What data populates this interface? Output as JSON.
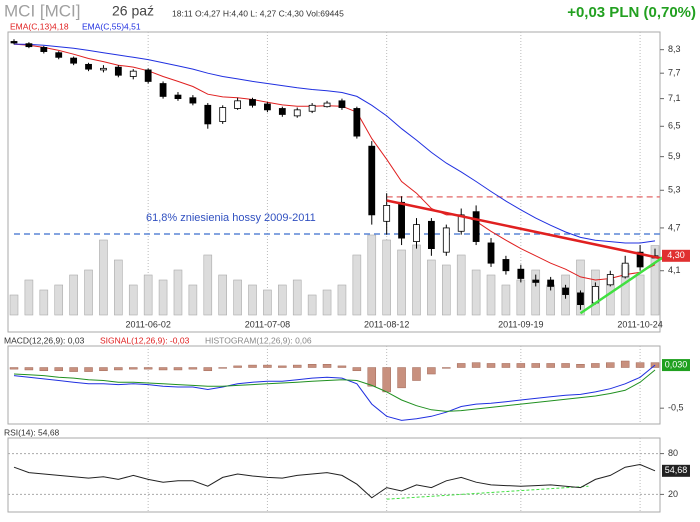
{
  "header": {
    "symbol": "MCI [MCI]",
    "date": "26 paź",
    "quote": "18:11 O:4,27 H:4,40 L: 4,27 C:4,30 Vol:69445",
    "change": "+0,03 PLN (0,70%)"
  },
  "chart_data": [
    {
      "type": "candlestick",
      "log_scale": true,
      "categories": [
        null,
        null,
        null,
        null,
        null,
        null,
        null,
        null,
        null,
        "2011-06-02",
        null,
        null,
        null,
        null,
        null,
        null,
        null,
        "2011-07-08",
        null,
        null,
        null,
        null,
        null,
        null,
        null,
        "2011-08-12",
        null,
        null,
        null,
        null,
        null,
        null,
        null,
        null,
        "2011-09-19",
        null,
        null,
        null,
        null,
        null,
        null,
        null,
        "2011-10-24",
        null
      ],
      "open": [
        8.52,
        8.46,
        8.36,
        8.22,
        8.08,
        7.92,
        7.78,
        7.85,
        7.62,
        7.78,
        7.45,
        7.18,
        7.12,
        6.95,
        6.6,
        6.88,
        7.08,
        6.98,
        6.88,
        6.72,
        6.82,
        6.92,
        7.05,
        6.88,
        6.1,
        4.8,
        5.1,
        4.5,
        4.8,
        4.35,
        4.65,
        4.95,
        4.48,
        4.25,
        4.12,
        3.98,
        3.98,
        3.88,
        3.82,
        3.7,
        3.92,
        4.02,
        4.35,
        4.27
      ],
      "high": [
        8.58,
        8.5,
        8.4,
        8.26,
        8.12,
        7.96,
        7.9,
        7.9,
        7.8,
        7.82,
        7.5,
        7.25,
        7.18,
        7.0,
        6.95,
        7.12,
        7.12,
        7.02,
        6.92,
        6.9,
        7.0,
        7.05,
        7.1,
        6.92,
        6.2,
        5.25,
        5.2,
        4.85,
        4.85,
        4.75,
        5.0,
        5.05,
        4.55,
        4.3,
        4.18,
        4.05,
        4.02,
        3.92,
        3.85,
        3.95,
        4.1,
        4.3,
        4.45,
        4.4
      ],
      "low": [
        8.44,
        8.34,
        8.2,
        8.05,
        7.9,
        7.75,
        7.72,
        7.6,
        7.55,
        7.45,
        7.1,
        7.05,
        6.95,
        6.45,
        6.55,
        6.85,
        6.9,
        6.8,
        6.7,
        6.68,
        6.78,
        6.9,
        6.85,
        6.25,
        4.75,
        4.6,
        4.45,
        4.4,
        4.3,
        4.3,
        4.6,
        4.45,
        4.15,
        4.05,
        3.95,
        3.9,
        3.85,
        3.75,
        3.62,
        3.68,
        3.9,
        4.0,
        4.1,
        4.27
      ],
      "close": [
        8.48,
        8.38,
        8.25,
        8.1,
        7.95,
        7.8,
        7.82,
        7.65,
        7.75,
        7.5,
        7.15,
        7.1,
        7.0,
        6.55,
        6.9,
        7.05,
        6.95,
        6.85,
        6.75,
        6.85,
        6.95,
        7.0,
        6.9,
        6.3,
        4.9,
        5.05,
        4.55,
        4.75,
        4.4,
        4.7,
        4.9,
        4.5,
        4.2,
        4.1,
        4.0,
        3.95,
        3.9,
        3.8,
        3.68,
        3.9,
        4.05,
        4.2,
        4.15,
        4.3
      ],
      "volume": [
        20000,
        35000,
        25000,
        30000,
        40000,
        45000,
        75000,
        55000,
        30000,
        40000,
        35000,
        45000,
        30000,
        60000,
        40000,
        35000,
        30000,
        25000,
        30000,
        35000,
        20000,
        25000,
        30000,
        60000,
        80000,
        75000,
        65000,
        70000,
        55000,
        50000,
        60000,
        45000,
        40000,
        30000,
        35000,
        45000,
        30000,
        40000,
        55000,
        45000,
        35000,
        50000,
        40000,
        69445
      ],
      "series": [
        {
          "name": "EMA(C,13)4,18",
          "color": "#e02020",
          "values": [
            8.45,
            8.42,
            8.36,
            8.28,
            8.18,
            8.07,
            7.99,
            7.9,
            7.85,
            7.76,
            7.62,
            7.5,
            7.38,
            7.2,
            7.14,
            7.12,
            7.08,
            7.02,
            6.96,
            6.93,
            6.93,
            6.94,
            6.93,
            6.8,
            6.25,
            5.85,
            5.45,
            5.25,
            5.0,
            4.9,
            4.9,
            4.8,
            4.65,
            4.52,
            4.4,
            4.3,
            4.2,
            4.12,
            4.02,
            3.98,
            4.0,
            4.05,
            4.08,
            4.18
          ]
        },
        {
          "name": "EMA(C,55)4,51",
          "color": "#2030e0",
          "values": [
            8.45,
            8.44,
            8.42,
            8.38,
            8.34,
            8.28,
            8.22,
            8.16,
            8.1,
            8.04,
            7.96,
            7.88,
            7.8,
            7.7,
            7.62,
            7.56,
            7.5,
            7.45,
            7.4,
            7.35,
            7.31,
            7.28,
            7.24,
            7.15,
            6.95,
            6.72,
            6.45,
            6.22,
            5.98,
            5.78,
            5.62,
            5.45,
            5.28,
            5.12,
            4.98,
            4.85,
            4.74,
            4.64,
            4.56,
            4.52,
            4.5,
            4.48,
            4.48,
            4.51
          ]
        }
      ],
      "ylim": [
        3.56,
        8.67
      ],
      "yticks": [
        {
          "value": 8.3,
          "label": "8,3"
        },
        {
          "value": 7.7,
          "label": "7,7"
        },
        {
          "value": 7.1,
          "label": "7,1"
        },
        {
          "value": 6.5,
          "label": "6,5"
        },
        {
          "value": 5.9,
          "label": "5,9"
        },
        {
          "value": 5.3,
          "label": "5,3"
        },
        {
          "value": 4.7,
          "label": "4,7"
        },
        {
          "value": 4.1,
          "label": "4,1"
        }
      ],
      "last_price": {
        "value": 4.3,
        "label": "4,30"
      },
      "levels": [
        {
          "value": 4.61,
          "color": "#5b86d6",
          "start": 0
        },
        {
          "value": 5.19,
          "color": "#e88080",
          "start": 25
        }
      ],
      "trendlines": [
        {
          "x": [
            25,
            43
          ],
          "y": [
            5.13,
            4.26
          ],
          "color": "#e02020"
        },
        {
          "x": [
            38,
            43
          ],
          "y": [
            3.58,
            4.28
          ],
          "color": "#40e040"
        }
      ],
      "annotation": "61,8% zniesienia hossy 2009-2011"
    },
    {
      "type": "macd",
      "series": [
        {
          "name": "MACD(12,26,9): 0,03",
          "color": "#2030e0",
          "legend_color": "#333333",
          "values": [
            -0.1,
            -0.12,
            -0.14,
            -0.16,
            -0.18,
            -0.2,
            -0.2,
            -0.21,
            -0.2,
            -0.21,
            -0.23,
            -0.24,
            -0.24,
            -0.27,
            -0.24,
            -0.2,
            -0.18,
            -0.17,
            -0.17,
            -0.15,
            -0.13,
            -0.12,
            -0.13,
            -0.2,
            -0.45,
            -0.6,
            -0.65,
            -0.63,
            -0.6,
            -0.55,
            -0.48,
            -0.45,
            -0.44,
            -0.42,
            -0.4,
            -0.38,
            -0.36,
            -0.34,
            -0.33,
            -0.3,
            -0.26,
            -0.2,
            -0.12,
            0.03
          ]
        },
        {
          "name": "SIGNAL(12,26,9): -0,03",
          "color": "#209020",
          "legend_color": "#e02020",
          "values": [
            -0.08,
            -0.09,
            -0.1,
            -0.12,
            -0.13,
            -0.15,
            -0.16,
            -0.18,
            -0.18,
            -0.19,
            -0.2,
            -0.21,
            -0.22,
            -0.23,
            -0.23,
            -0.22,
            -0.21,
            -0.2,
            -0.19,
            -0.18,
            -0.17,
            -0.16,
            -0.15,
            -0.16,
            -0.22,
            -0.3,
            -0.4,
            -0.47,
            -0.52,
            -0.54,
            -0.53,
            -0.51,
            -0.49,
            -0.47,
            -0.45,
            -0.43,
            -0.41,
            -0.39,
            -0.37,
            -0.35,
            -0.32,
            -0.28,
            -0.18,
            -0.03
          ]
        },
        {
          "name": "HISTOGRAM(12,26,9): 0,06",
          "color": "#c8907e",
          "legend_color": "#888888",
          "values": [
            -0.02,
            -0.03,
            -0.04,
            -0.04,
            -0.05,
            -0.05,
            -0.04,
            -0.03,
            -0.02,
            -0.02,
            -0.03,
            -0.03,
            -0.02,
            -0.04,
            -0.01,
            0.02,
            0.03,
            0.03,
            0.02,
            0.03,
            0.04,
            0.04,
            0.02,
            -0.04,
            -0.23,
            -0.3,
            -0.25,
            -0.16,
            -0.08,
            -0.01,
            0.05,
            0.06,
            0.05,
            0.05,
            0.05,
            0.05,
            0.05,
            0.05,
            0.04,
            0.05,
            0.06,
            0.08,
            0.06,
            0.06
          ]
        }
      ],
      "ylim": [
        -0.67,
        0.24
      ],
      "yticks": [
        {
          "value": -0.5,
          "label": "-0,5"
        }
      ],
      "last_value": {
        "value": 0.03,
        "label": "0,030"
      }
    },
    {
      "type": "rsi",
      "series": [
        {
          "name": "RSI(14): 54,68",
          "color": "#222222",
          "values": [
            60,
            52,
            50,
            48,
            46,
            44,
            46,
            42,
            48,
            42,
            38,
            40,
            40,
            32,
            45,
            50,
            47,
            45,
            44,
            48,
            50,
            52,
            48,
            35,
            15,
            30,
            25,
            34,
            30,
            40,
            45,
            38,
            34,
            33,
            32,
            33,
            34,
            32,
            30,
            42,
            48,
            60,
            64,
            54.68
          ]
        }
      ],
      "ylim": [
        0,
        100
      ],
      "yticks": [
        80,
        20
      ],
      "grid": true,
      "last_value": {
        "value": 54.68,
        "label": "54,68"
      },
      "trendlines": [
        {
          "x": [
            25,
            38
          ],
          "y": [
            13,
            32
          ],
          "color": "#40e040"
        }
      ]
    }
  ]
}
